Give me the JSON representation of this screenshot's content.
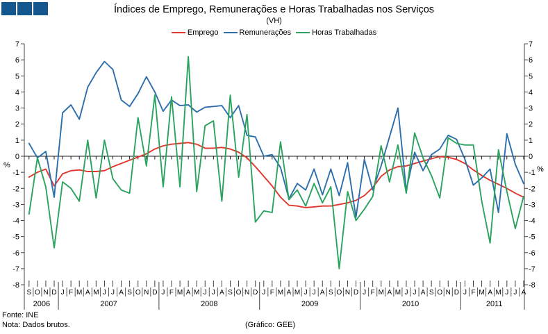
{
  "title": "Índices de Emprego, Remunerações e Horas Trabalhadas nos Serviços",
  "subtitle": "(VH)",
  "legend": [
    {
      "label": "Emprego",
      "color": "#e0372b"
    },
    {
      "label": "Remunerações",
      "color": "#2d6fac"
    },
    {
      "label": "Horas Trabalhadas",
      "color": "#29a35e"
    }
  ],
  "footer": {
    "source": "Fonte: INE",
    "note": "Nota: Dados brutos.",
    "credit": "(Gráfico: GEE)"
  },
  "logo_color": "#14578f",
  "chart_data": {
    "type": "line",
    "title": "Índices de Emprego, Remunerações e Horas Trabalhadas nos Serviços (VH)",
    "ylabel_left": "%",
    "ylabel_right": "%",
    "ylim": [
      -8,
      7
    ],
    "y_ticks": [
      7,
      6,
      5,
      4,
      3,
      2,
      1,
      0,
      -1,
      -2,
      -3,
      -4,
      -5,
      -6,
      -7,
      -8
    ],
    "grid": false,
    "legend_position": "top",
    "months": [
      "S",
      "O",
      "N",
      "D",
      "J",
      "F",
      "M",
      "A",
      "M",
      "J",
      "J",
      "A",
      "S",
      "O",
      "N",
      "D",
      "J",
      "F",
      "M",
      "A",
      "M",
      "J",
      "J",
      "A",
      "S",
      "O",
      "N",
      "D",
      "J",
      "F",
      "M",
      "A",
      "M",
      "J",
      "J",
      "A",
      "S",
      "O",
      "N",
      "D",
      "J",
      "F",
      "M",
      "A",
      "M",
      "J",
      "J",
      "A",
      "S",
      "O",
      "N",
      "D",
      "J",
      "F",
      "M",
      "A",
      "M",
      "J",
      "J",
      "A"
    ],
    "years": [
      {
        "label": "2006",
        "from": 0,
        "to": 3
      },
      {
        "label": "2007",
        "from": 4,
        "to": 15
      },
      {
        "label": "2008",
        "from": 16,
        "to": 27
      },
      {
        "label": "2009",
        "from": 28,
        "to": 39
      },
      {
        "label": "2010",
        "from": 40,
        "to": 51
      },
      {
        "label": "2011",
        "from": 52,
        "to": 59
      }
    ],
    "series": [
      {
        "name": "Emprego",
        "key": "emprego",
        "color": "#e0372b",
        "values": [
          -1.3,
          -1.0,
          -0.8,
          -1.85,
          -1.1,
          -0.9,
          -0.85,
          -0.95,
          -0.95,
          -0.9,
          -0.65,
          -0.45,
          -0.25,
          -0.05,
          0.15,
          0.45,
          0.65,
          0.75,
          0.8,
          0.85,
          0.75,
          0.5,
          0.5,
          0.55,
          0.45,
          0.25,
          -0.1,
          -0.65,
          -1.25,
          -1.85,
          -2.55,
          -3.05,
          -3.1,
          -3.2,
          -3.15,
          -3.1,
          -3.1,
          -3.0,
          -2.9,
          -2.75,
          -2.45,
          -1.95,
          -1.25,
          -0.85,
          -0.65,
          -0.6,
          -0.45,
          -0.3,
          -0.15,
          -0.02,
          -0.07,
          -0.2,
          -0.45,
          -0.85,
          -1.2,
          -1.5,
          -1.75,
          -2.0,
          -2.3,
          -2.55
        ]
      },
      {
        "name": "Remunerações",
        "key": "remuneracoes",
        "color": "#2d6fac",
        "values": [
          0.8,
          -0.1,
          0.3,
          -2.55,
          2.7,
          3.2,
          2.3,
          4.3,
          5.2,
          5.9,
          5.4,
          3.5,
          3.1,
          3.9,
          4.95,
          4.0,
          2.8,
          3.5,
          3.15,
          3.2,
          2.75,
          3.05,
          3.1,
          3.15,
          2.4,
          3.15,
          1.3,
          1.2,
          0.0,
          0.1,
          -0.7,
          -2.65,
          -1.7,
          -2.1,
          -0.8,
          -2.4,
          -0.8,
          -2.45,
          -0.4,
          -3.8,
          -0.2,
          -2.1,
          -0.6,
          1.2,
          3.0,
          -2.1,
          0.25,
          -0.9,
          0.1,
          0.45,
          1.3,
          1.05,
          -0.2,
          -1.8,
          -1.35,
          -0.8,
          -3.5,
          1.4,
          -0.5,
          -1.7
        ]
      },
      {
        "name": "Horas Trabalhadas",
        "key": "horas-trabalhadas",
        "color": "#29a35e",
        "values": [
          -3.6,
          -0.1,
          -1.9,
          -5.7,
          -1.6,
          -2.0,
          -2.8,
          1.0,
          -2.6,
          1.0,
          -1.4,
          -2.1,
          -2.3,
          2.4,
          -0.6,
          3.8,
          -1.9,
          3.7,
          -1.9,
          6.2,
          -2.2,
          1.9,
          2.2,
          -2.8,
          3.8,
          -1.3,
          2.6,
          -4.1,
          -3.4,
          -3.5,
          0.9,
          -2.7,
          -2.1,
          -3.1,
          -1.7,
          -2.9,
          -1.9,
          -7.0,
          -2.2,
          -4.0,
          -3.3,
          -2.5,
          0.65,
          -1.6,
          0.7,
          -2.3,
          1.45,
          -0.1,
          -1.2,
          -2.6,
          1.15,
          0.8,
          0.7,
          0.7,
          -2.8,
          -5.4,
          0.4,
          -2.2,
          -4.5,
          -2.5
        ]
      }
    ]
  }
}
